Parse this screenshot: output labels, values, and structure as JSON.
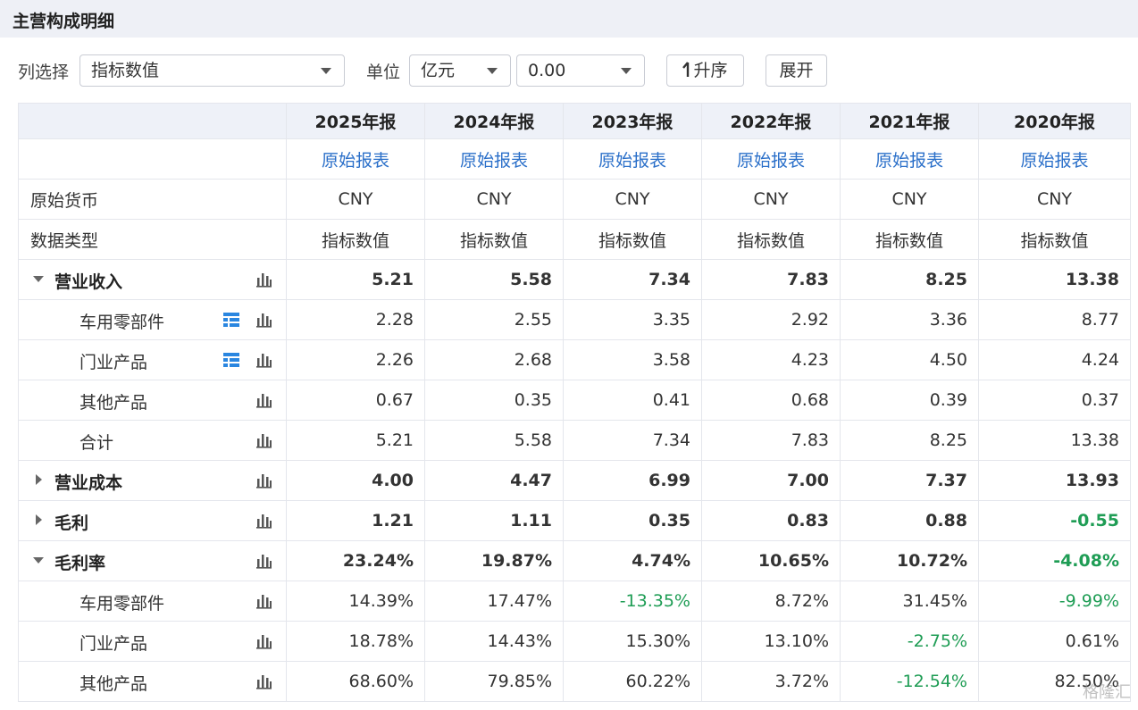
{
  "header": {
    "title": "主营构成明细"
  },
  "toolbar": {
    "column_label": "列选择",
    "column_value": "指标数值",
    "unit_label": "单位",
    "unit_value": "亿元",
    "format_value": "0.00",
    "sort_button": "升序",
    "expand_button": "展开"
  },
  "table": {
    "columns": [
      "2025年报",
      "2024年报",
      "2023年报",
      "2022年报",
      "2021年报",
      "2020年报"
    ],
    "source_links": [
      "原始报表",
      "原始报表",
      "原始报表",
      "原始报表",
      "原始报表",
      "原始报表"
    ],
    "info_rows": [
      {
        "label": "原始货币",
        "values": [
          "CNY",
          "CNY",
          "CNY",
          "CNY",
          "CNY",
          "CNY"
        ]
      },
      {
        "label": "数据类型",
        "values": [
          "指标数值",
          "指标数值",
          "指标数值",
          "指标数值",
          "指标数值",
          "指标数值"
        ]
      }
    ],
    "rows": [
      {
        "label": "营业收入",
        "level": "parent",
        "expanded": true,
        "values": [
          "5.21",
          "5.58",
          "7.34",
          "7.83",
          "8.25",
          "13.38"
        ]
      },
      {
        "label": "车用零部件",
        "level": "child",
        "detail": true,
        "values": [
          "2.28",
          "2.55",
          "3.35",
          "2.92",
          "3.36",
          "8.77"
        ]
      },
      {
        "label": "门业产品",
        "level": "child",
        "detail": true,
        "values": [
          "2.26",
          "2.68",
          "3.58",
          "4.23",
          "4.50",
          "4.24"
        ]
      },
      {
        "label": "其他产品",
        "level": "child",
        "values": [
          "0.67",
          "0.35",
          "0.41",
          "0.68",
          "0.39",
          "0.37"
        ]
      },
      {
        "label": "合计",
        "level": "child",
        "values": [
          "5.21",
          "5.58",
          "7.34",
          "7.83",
          "8.25",
          "13.38"
        ]
      },
      {
        "label": "营业成本",
        "level": "parent",
        "expanded": false,
        "values": [
          "4.00",
          "4.47",
          "6.99",
          "7.00",
          "7.37",
          "13.93"
        ]
      },
      {
        "label": "毛利",
        "level": "parent",
        "expanded": false,
        "values": [
          "1.21",
          "1.11",
          "0.35",
          "0.83",
          "0.88",
          "-0.55"
        ]
      },
      {
        "label": "毛利率",
        "level": "parent",
        "expanded": true,
        "values": [
          "23.24%",
          "19.87%",
          "4.74%",
          "10.65%",
          "10.72%",
          "-4.08%"
        ]
      },
      {
        "label": "车用零部件",
        "level": "child",
        "values": [
          "14.39%",
          "17.47%",
          "-13.35%",
          "8.72%",
          "31.45%",
          "-9.99%"
        ]
      },
      {
        "label": "门业产品",
        "level": "child",
        "values": [
          "18.78%",
          "14.43%",
          "15.30%",
          "13.10%",
          "-2.75%",
          "0.61%"
        ]
      },
      {
        "label": "其他产品",
        "level": "child",
        "values": [
          "68.60%",
          "79.85%",
          "60.22%",
          "3.72%",
          "-12.54%",
          "82.50%"
        ]
      }
    ]
  },
  "watermark": "格隆汇"
}
